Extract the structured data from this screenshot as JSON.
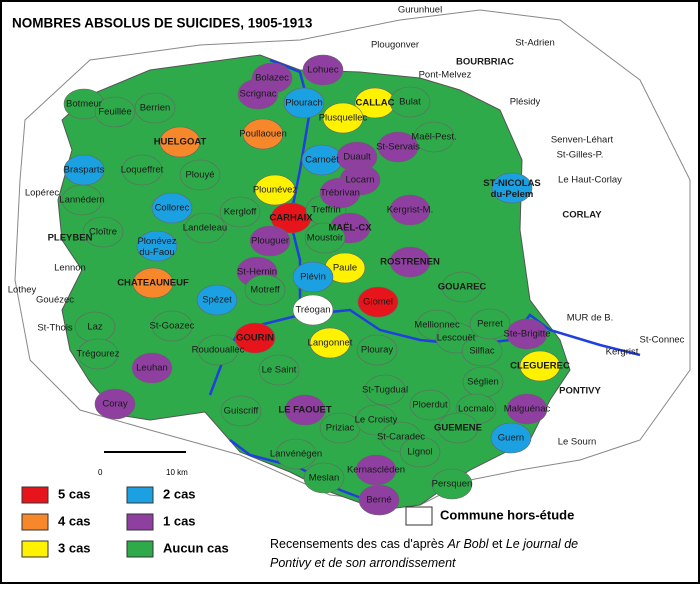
{
  "title": "NOMBRES ABSOLUS DE SUICIDES, 1905-1913",
  "legend": [
    {
      "label": "5 cas",
      "color": "#e8141c"
    },
    {
      "label": "4 cas",
      "color": "#f6882b"
    },
    {
      "label": "3 cas",
      "color": "#fff200"
    },
    {
      "label": "2 cas",
      "color": "#1ba1e2"
    },
    {
      "label": "1 cas",
      "color": "#8e3fa0"
    },
    {
      "label": "Aucun cas",
      "color": "#2eaa4a"
    }
  ],
  "outside_legend": {
    "label": "Commune hors-étude",
    "color": "#ffffff"
  },
  "scale": {
    "start": "0",
    "end": "10 km"
  },
  "source": [
    {
      "text": "Recensements des cas d'après ",
      "italic": false
    },
    {
      "text": "Ar Bobl",
      "italic": true
    },
    {
      "text": " et ",
      "italic": false
    },
    {
      "text": "Le journal de",
      "italic": true
    },
    {
      "text": "Pontivy",
      "italic": true
    },
    {
      "text": " et de son arrondissement",
      "italic": true
    }
  ],
  "communes": [
    {
      "name": "Gurunhuel",
      "color": "#ffffff"
    },
    {
      "name": "St-Adrien",
      "color": "#ffffff"
    },
    {
      "name": "Plougonver",
      "color": "#ffffff"
    },
    {
      "name": "BOURBRIAC",
      "color": "#ffffff"
    },
    {
      "name": "Pont-Melvez",
      "color": "#ffffff"
    },
    {
      "name": "Plésidy",
      "color": "#ffffff"
    },
    {
      "name": "Senven-Léhart",
      "color": "#ffffff"
    },
    {
      "name": "St-Gilles-P.",
      "color": "#ffffff"
    },
    {
      "name": "Le Haut-Corlay",
      "color": "#ffffff"
    },
    {
      "name": "CORLAY",
      "color": "#ffffff"
    },
    {
      "name": "Lopérec",
      "color": "#ffffff"
    },
    {
      "name": "PLEYBEN",
      "color": "#ffffff"
    },
    {
      "name": "Lennon",
      "color": "#ffffff"
    },
    {
      "name": "Lothey",
      "color": "#ffffff"
    },
    {
      "name": "Gouézec",
      "color": "#ffffff"
    },
    {
      "name": "St-Thois",
      "color": "#ffffff"
    },
    {
      "name": "MUR de B.",
      "color": "#ffffff"
    },
    {
      "name": "St-Connec",
      "color": "#ffffff"
    },
    {
      "name": "Kergrist",
      "color": "#ffffff"
    },
    {
      "name": "PONTIVY",
      "color": "#ffffff"
    },
    {
      "name": "Le Sourn",
      "color": "#ffffff"
    },
    {
      "name": "Bolazec",
      "color": "#8e3fa0"
    },
    {
      "name": "Scrignac",
      "color": "#8e3fa0"
    },
    {
      "name": "Lohuec",
      "color": "#8e3fa0"
    },
    {
      "name": "CALLAC",
      "color": "#fff200"
    },
    {
      "name": "Plourach",
      "color": "#1ba1e2"
    },
    {
      "name": "Plusquellec",
      "color": "#fff200"
    },
    {
      "name": "Bulat",
      "color": "#2eaa4a"
    },
    {
      "name": "Maël-Pest.",
      "color": "#2eaa4a"
    },
    {
      "name": "St-Servais",
      "color": "#8e3fa0"
    },
    {
      "name": "Botmeur",
      "color": "#2eaa4a"
    },
    {
      "name": "Feuillée",
      "color": "#2eaa4a"
    },
    {
      "name": "Berrien",
      "color": "#2eaa4a"
    },
    {
      "name": "HUELGOAT",
      "color": "#f6882b"
    },
    {
      "name": "Poullaouen",
      "color": "#f6882b"
    },
    {
      "name": "Brasparts",
      "color": "#1ba1e2"
    },
    {
      "name": "Loqueffret",
      "color": "#2eaa4a"
    },
    {
      "name": "Plouyé",
      "color": "#2eaa4a"
    },
    {
      "name": "Carnoët",
      "color": "#1ba1e2"
    },
    {
      "name": "Duault",
      "color": "#8e3fa0"
    },
    {
      "name": "Locarn",
      "color": "#8e3fa0"
    },
    {
      "name": "Lannédern",
      "color": "#2eaa4a"
    },
    {
      "name": "Plounévez",
      "color": "#fff200"
    },
    {
      "name": "Kergloff",
      "color": "#2eaa4a"
    },
    {
      "name": "Collorec",
      "color": "#1ba1e2"
    },
    {
      "name": "CARHAIX",
      "color": "#e8141c"
    },
    {
      "name": "Treffrin",
      "color": "#2eaa4a"
    },
    {
      "name": "Trébrivan",
      "color": "#8e3fa0"
    },
    {
      "name": "MAËL-CX",
      "color": "#8e3fa0"
    },
    {
      "name": "Kergrist-M.",
      "color": "#8e3fa0"
    },
    {
      "name": "ST-NICOLAS du-Pelem",
      "color": "#1ba1e2"
    },
    {
      "name": "Cloître",
      "color": "#2eaa4a"
    },
    {
      "name": "Plonévez du-Faou",
      "color": "#1ba1e2"
    },
    {
      "name": "Landeleau",
      "color": "#2eaa4a"
    },
    {
      "name": "Plouguer",
      "color": "#8e3fa0"
    },
    {
      "name": "Moustoir",
      "color": "#2eaa4a"
    },
    {
      "name": "ROSTRENEN",
      "color": "#8e3fa0"
    },
    {
      "name": "Paule",
      "color": "#fff200"
    },
    {
      "name": "Glomel",
      "color": "#e8141c"
    },
    {
      "name": "GOUAREC",
      "color": "#2eaa4a"
    },
    {
      "name": "CHATEAUNEUF",
      "color": "#f6882b"
    },
    {
      "name": "Spézet",
      "color": "#1ba1e2"
    },
    {
      "name": "St-Hernin",
      "color": "#8e3fa0"
    },
    {
      "name": "Plévin",
      "color": "#1ba1e2"
    },
    {
      "name": "Motreff",
      "color": "#2eaa4a"
    },
    {
      "name": "Tréogan",
      "color": "#ffffff"
    },
    {
      "name": "St-Goazec",
      "color": "#2eaa4a"
    },
    {
      "name": "Laz",
      "color": "#2eaa4a"
    },
    {
      "name": "GOURIN",
      "color": "#e8141c"
    },
    {
      "name": "Langonnet",
      "color": "#fff200"
    },
    {
      "name": "Plouray",
      "color": "#2eaa4a"
    },
    {
      "name": "Mellionnec",
      "color": "#2eaa4a"
    },
    {
      "name": "Lescouët",
      "color": "#2eaa4a"
    },
    {
      "name": "Silfiac",
      "color": "#2eaa4a"
    },
    {
      "name": "Perret",
      "color": "#2eaa4a"
    },
    {
      "name": "Ste-Brigitte",
      "color": "#8e3fa0"
    },
    {
      "name": "CLEGUEREC",
      "color": "#fff200"
    },
    {
      "name": "Trégourez",
      "color": "#2eaa4a"
    },
    {
      "name": "Leuhan",
      "color": "#8e3fa0"
    },
    {
      "name": "Roudouallec",
      "color": "#2eaa4a"
    },
    {
      "name": "Le Saint",
      "color": "#2eaa4a"
    },
    {
      "name": "Coray",
      "color": "#8e3fa0"
    },
    {
      "name": "St-Tugdual",
      "color": "#2eaa4a"
    },
    {
      "name": "Séglien",
      "color": "#2eaa4a"
    },
    {
      "name": "Guiscriff",
      "color": "#2eaa4a"
    },
    {
      "name": "LE FAOUET",
      "color": "#8e3fa0"
    },
    {
      "name": "Priziac",
      "color": "#2eaa4a"
    },
    {
      "name": "Le Croisty",
      "color": "#2eaa4a"
    },
    {
      "name": "Ploerdut",
      "color": "#2eaa4a"
    },
    {
      "name": "Locmalo",
      "color": "#2eaa4a"
    },
    {
      "name": "Malguénac",
      "color": "#8e3fa0"
    },
    {
      "name": "GUEMENE",
      "color": "#2eaa4a"
    },
    {
      "name": "Lanvénégen",
      "color": "#2eaa4a"
    },
    {
      "name": "St-Caradec",
      "color": "#2eaa4a"
    },
    {
      "name": "Lignol",
      "color": "#2eaa4a"
    },
    {
      "name": "Guern",
      "color": "#1ba1e2"
    },
    {
      "name": "Kernascléden",
      "color": "#8e3fa0"
    },
    {
      "name": "Meslan",
      "color": "#2eaa4a"
    },
    {
      "name": "Persquen",
      "color": "#2eaa4a"
    },
    {
      "name": "Berné",
      "color": "#8e3fa0"
    }
  ]
}
